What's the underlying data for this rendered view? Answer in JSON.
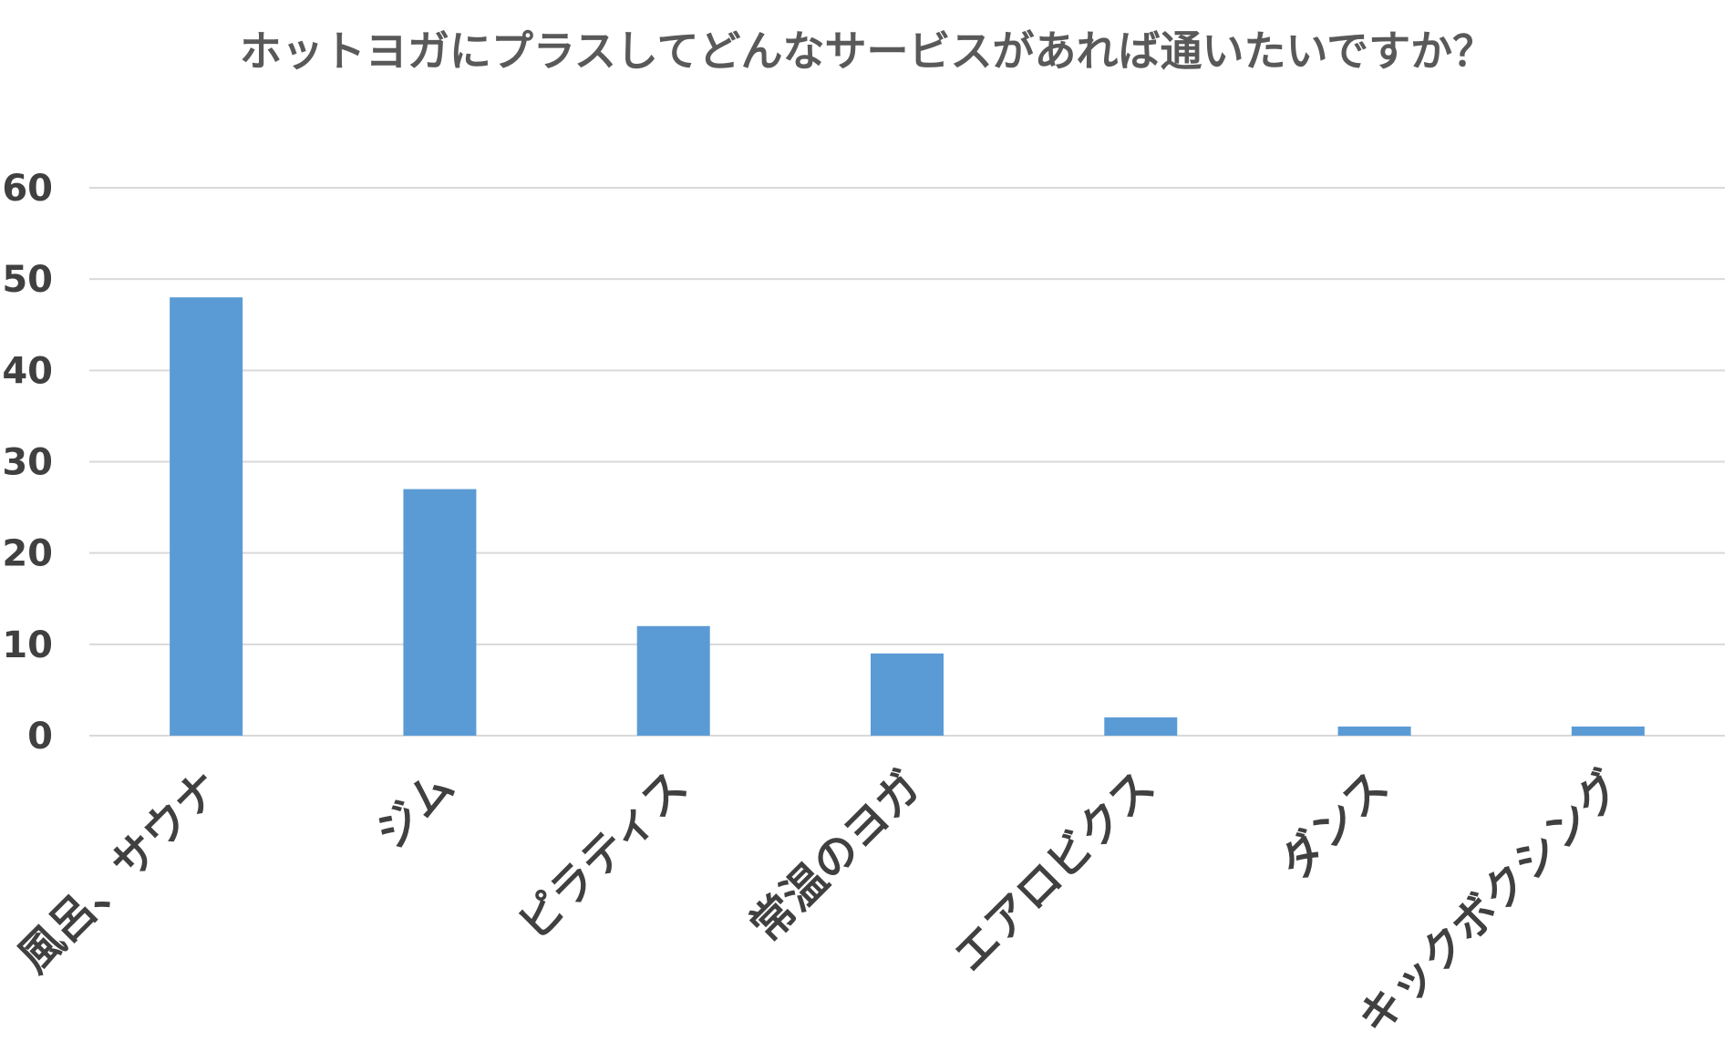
{
  "chart_data": {
    "type": "bar",
    "title": "ホットヨガにプラスしてどんなサービスがあれば通いたいですか？",
    "xlabel": "",
    "ylabel": "",
    "categories": [
      "風呂、サウナ",
      "ジム",
      "ピラティス",
      "常温のヨガ",
      "エアロビクス",
      "ダンス",
      "キックボクシング"
    ],
    "values": [
      48,
      27,
      12,
      9,
      2,
      1,
      1
    ],
    "ylim": [
      0,
      60
    ],
    "yticks": [
      "0",
      "10",
      "20",
      "30",
      "40",
      "50",
      "60"
    ],
    "grid": true,
    "legend": "none",
    "colors": {
      "bar": "#5b9bd5",
      "grid": "#d9d9d9",
      "text": "#404040"
    }
  }
}
